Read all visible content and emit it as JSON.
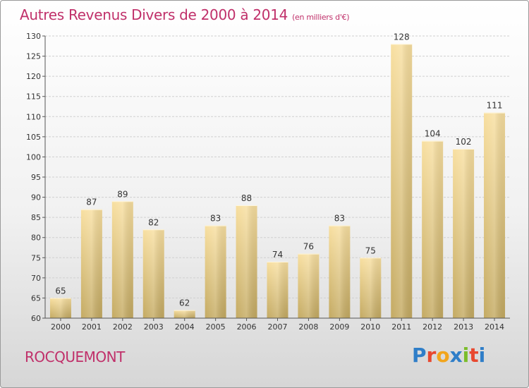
{
  "header": {
    "title": "Autres Revenus Divers de 2000 à 2014",
    "unit": "(en milliers d'€)"
  },
  "footer": {
    "place": "ROCQUEMONT",
    "brand": "Proxiti"
  },
  "colors": {
    "title": "#c0306a",
    "bar_top": "#f8dfa0",
    "bar_bottom": "#c4aa62",
    "grid": "#d0d0d0"
  },
  "chart_data": {
    "type": "bar",
    "title": "Autres Revenus Divers de 2000 à 2014",
    "subtitle": "(en milliers d'€)",
    "xlabel": "",
    "ylabel": "",
    "categories": [
      "2000",
      "2001",
      "2002",
      "2003",
      "2004",
      "2005",
      "2006",
      "2007",
      "2008",
      "2009",
      "2010",
      "2011",
      "2012",
      "2013",
      "2014"
    ],
    "values": [
      65,
      87,
      89,
      82,
      62,
      83,
      88,
      74,
      76,
      83,
      75,
      128,
      104,
      102,
      111
    ],
    "ylim": [
      60,
      130
    ],
    "yticks": [
      60,
      65,
      70,
      75,
      80,
      85,
      90,
      95,
      100,
      105,
      110,
      115,
      120,
      125,
      130
    ],
    "grid": true,
    "legend": "none"
  }
}
